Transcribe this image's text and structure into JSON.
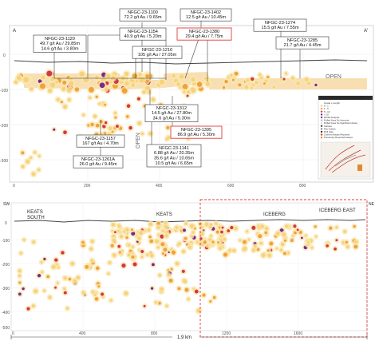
{
  "upper_panel": {
    "corner_left": "A",
    "corner_right": "A'",
    "depth_ticks": [
      "0",
      "-100",
      "-200",
      "-300"
    ],
    "distance_ticks": [
      "0",
      "200",
      "400",
      "600",
      "800"
    ],
    "open_label_right": "OPEN",
    "open_label_vertical": "OPEN",
    "callouts": [
      {
        "id": "c1100",
        "lines": [
          "NFGC-23-1100",
          "72.2 g/t Au / 9.65m"
        ],
        "highlight": false
      },
      {
        "id": "c1402",
        "lines": [
          "NFGC-23-1402",
          "12.5 g/t Au / 10.45m"
        ],
        "highlight": false
      },
      {
        "id": "c1274",
        "lines": [
          "NFGC-23-1274",
          "15.5 g/t Au / 7.55m"
        ],
        "highlight": false
      },
      {
        "id": "c1120",
        "lines": [
          "NFGC-23-1120",
          "49.7 g/t Au / 29.85m",
          "14.6 g/t Au / 3.80m"
        ],
        "highlight": false
      },
      {
        "id": "c1154",
        "lines": [
          "NFGC-23-1154",
          "40.9 g/t Au / 5.20m"
        ],
        "highlight": false
      },
      {
        "id": "c1380",
        "lines": [
          "NFGC-23-1380",
          "29.4 g/t Au / 7.75m"
        ],
        "highlight": true
      },
      {
        "id": "c1285",
        "lines": [
          "NFGC-23-1285",
          "21.7 g/t Au / 4.45m"
        ],
        "highlight": false
      },
      {
        "id": "c1210",
        "lines": [
          "NFGC-23-1210",
          "105 g/t Au / 27.05m"
        ],
        "highlight": false
      },
      {
        "id": "c1312",
        "lines": [
          "NFGC-23-1312",
          "14.5 g/t Au / 27.80m",
          "34.6 g/t Au / 5.30m"
        ],
        "highlight": false
      },
      {
        "id": "c1395",
        "lines": [
          "NFGC-23-1395",
          "86.9 g/t Au / 5.30m"
        ],
        "highlight": true
      },
      {
        "id": "c1157",
        "lines": [
          "NFGC-23-1157",
          "167 g/t Au / 4.70m"
        ],
        "highlight": false
      },
      {
        "id": "c1141",
        "lines": [
          "NFGC-23-1141",
          "6.88 g/t Au / 20.35m",
          "35.6 g/t Au / 10.65m",
          "10.5 g/t Au / 6.65m"
        ],
        "highlight": false
      },
      {
        "id": "c1261A",
        "lines": [
          "NFGC-23-1261A",
          "26.0 g/t Au / 9.45m"
        ],
        "highlight": false
      }
    ],
    "legend": {
      "title": "ICEBERG LONG SECTION MAP",
      "items": [
        "Grade x Length",
        "0 - 1",
        "1 - 5",
        "5 - 10",
        "> 10",
        "Model Analysis",
        "Drilled Area No Intercept",
        "Drilled Area No Significant Assay",
        "Surface",
        "Pits Outline",
        "Drill Hole",
        "Current Assays Reported",
        "Previously Reported Assays"
      ]
    }
  },
  "lower_panel": {
    "corner_left": "SW",
    "corner_right": "NE",
    "zones": [
      "KEATS SOUTH",
      "KEATS",
      "ICEBERG",
      "ICEBERG EAST"
    ],
    "scale_label": "1.9 km",
    "depth_ticks": [
      "0",
      "-100",
      "-200",
      "-300",
      "-400",
      "-500"
    ],
    "distance_ticks": [
      "0",
      "400",
      "800",
      "1200",
      "1600"
    ]
  },
  "colors": {
    "grade_low": "#f6d27a",
    "grade_mid": "#f0a23a",
    "grade_high": "#d4374a",
    "grade_top": "#7a2a8c",
    "halo": "#fbe7b0",
    "highlight_box": "#e23b3b",
    "surface_line": "#444444"
  }
}
